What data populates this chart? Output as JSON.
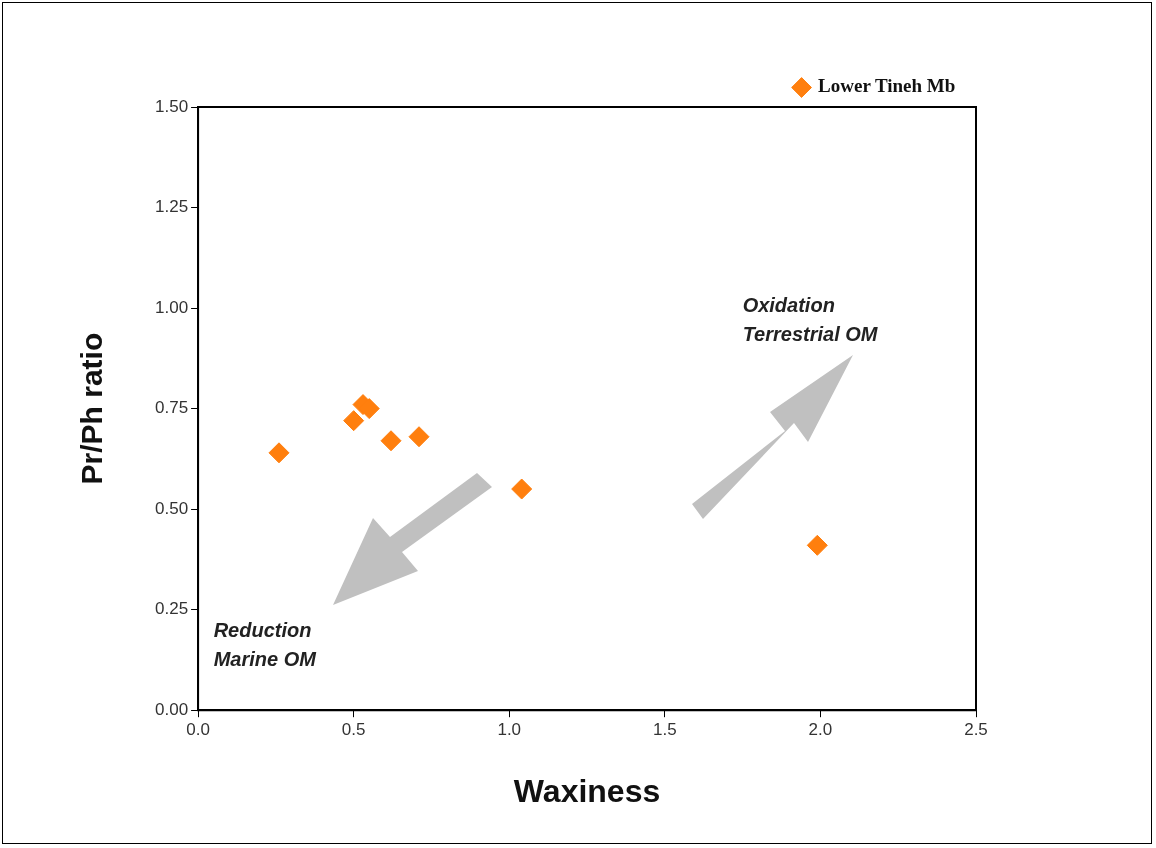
{
  "chart_data": {
    "type": "scatter",
    "xlabel": "Waxiness",
    "ylabel": "Pr/Ph ratio",
    "xlim": [
      0,
      2.5
    ],
    "xticks": [
      {
        "value": 0,
        "label": "0.0"
      },
      {
        "value": 0.5,
        "label": "0.5"
      },
      {
        "value": 1,
        "label": "1.0"
      },
      {
        "value": 1.5,
        "label": "1.5"
      },
      {
        "value": 2,
        "label": "2.0"
      },
      {
        "value": 2.5,
        "label": "2.5"
      }
    ],
    "ylim": [
      0,
      1.5
    ],
    "yticks": [
      {
        "value": 0,
        "label": "0.00"
      },
      {
        "value": 0.25,
        "label": "0.25"
      },
      {
        "value": 0.5,
        "label": "0.50"
      },
      {
        "value": 0.75,
        "label": "0.75"
      },
      {
        "value": 1,
        "label": "1.00"
      },
      {
        "value": 1.25,
        "label": "1.25"
      },
      {
        "value": 1.5,
        "label": "1.50"
      }
    ],
    "series": [
      {
        "name": "Lower Tineh Mb",
        "color": "#ff7f0e",
        "x": [
          0.26,
          0.5,
          0.53,
          0.55,
          0.62,
          0.71,
          1.04,
          1.99
        ],
        "values": [
          0.64,
          0.72,
          0.76,
          0.75,
          0.67,
          0.68,
          0.55,
          0.41
        ]
      }
    ],
    "marker": "diamond",
    "legend": "top right",
    "grid": false,
    "annotations": [
      "Oxidation\nTerrestrial OM",
      "Reduction\nMarine OM"
    ]
  }
}
